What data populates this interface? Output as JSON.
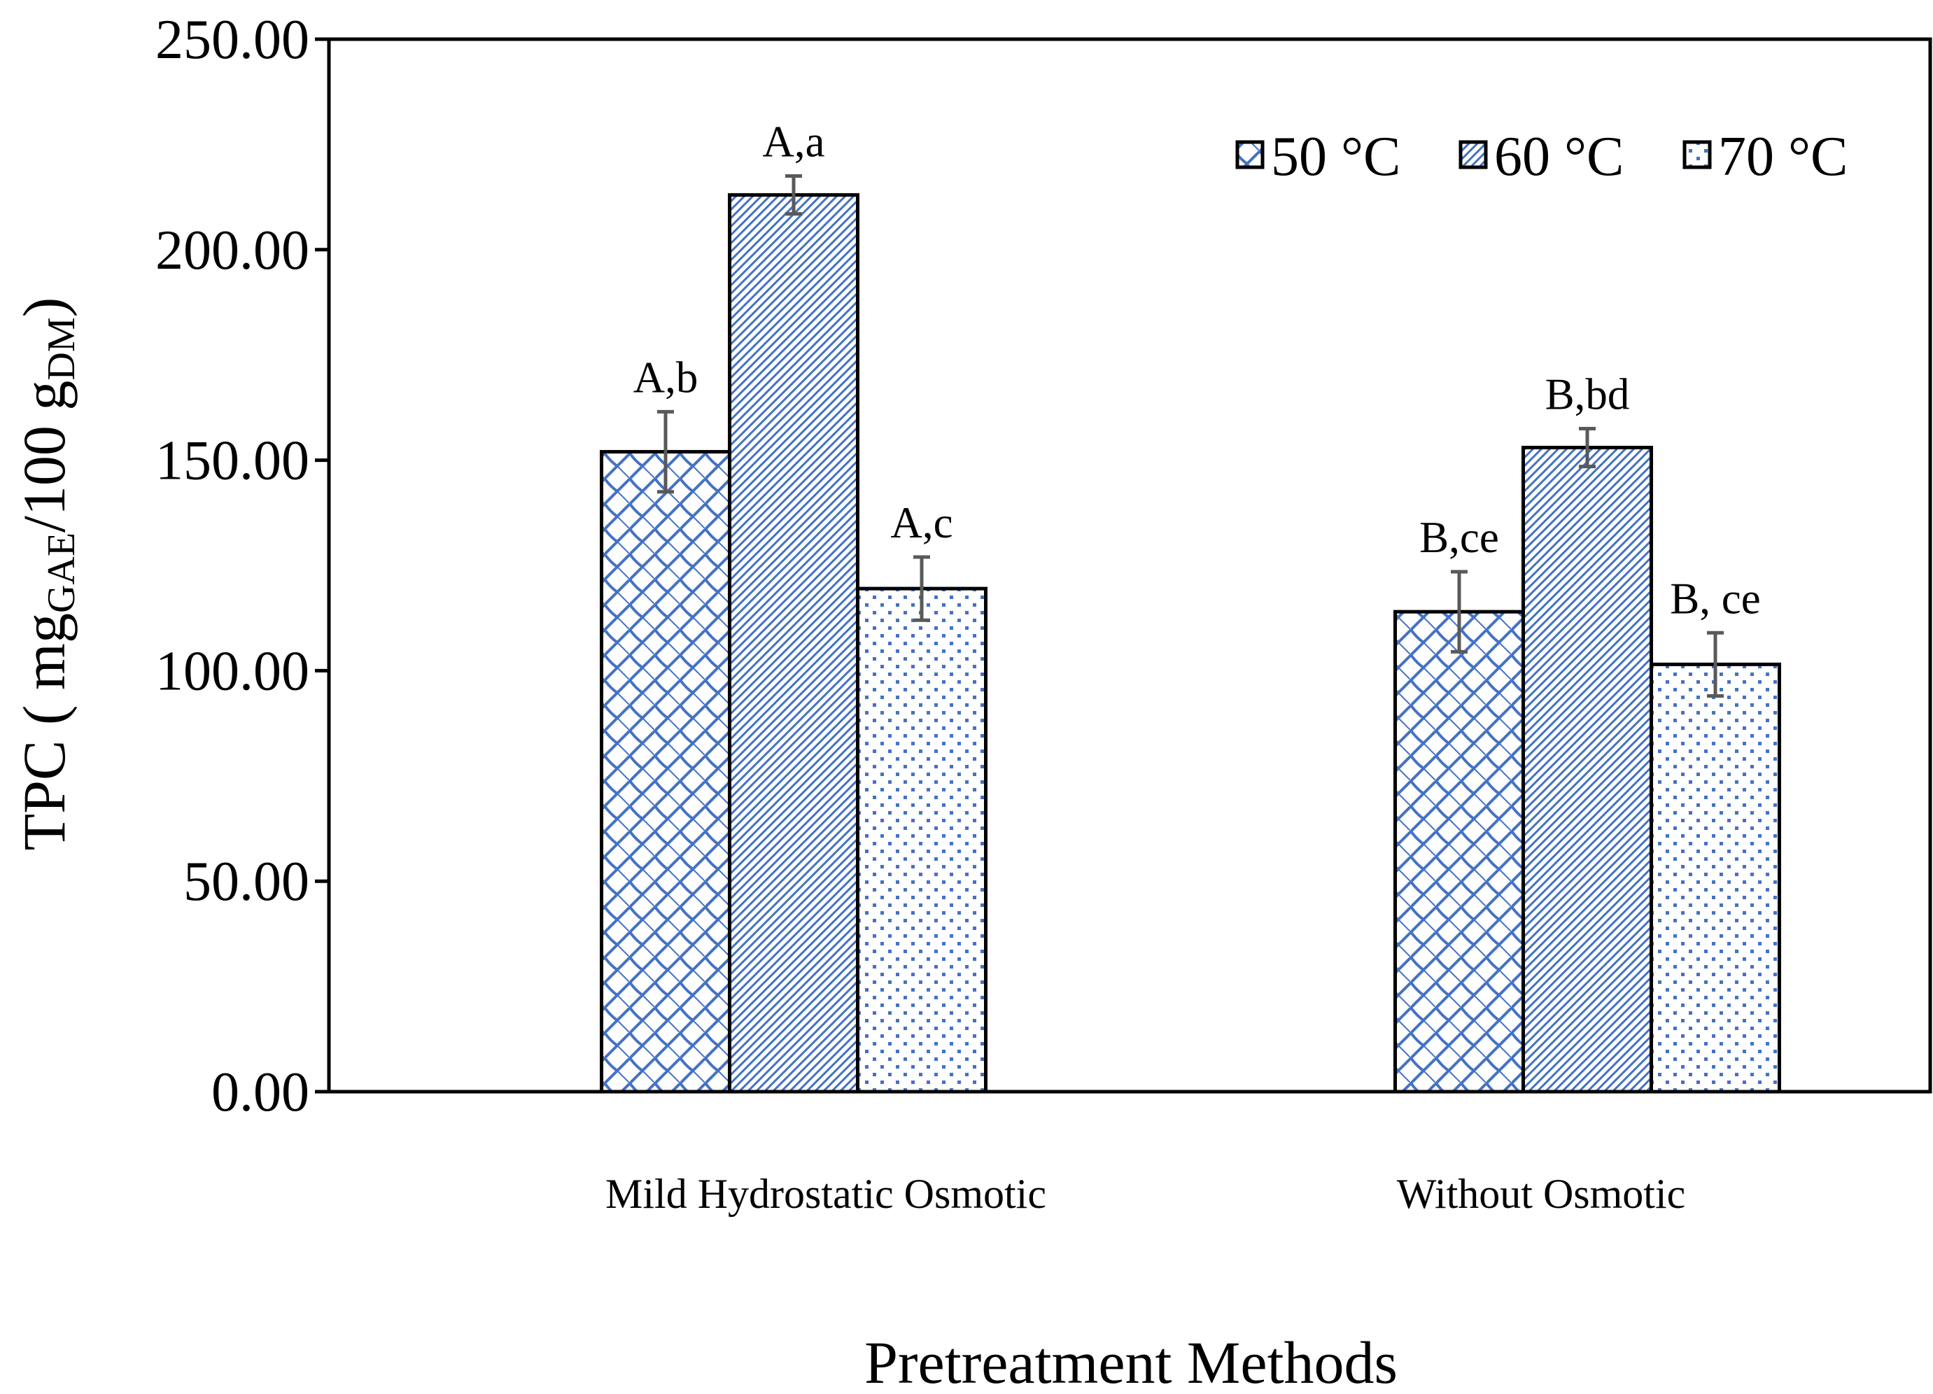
{
  "chart_data": {
    "type": "bar",
    "title": "",
    "xlabel": "Pretreatment Methods",
    "ylabel": {
      "prefix": "TPC ( mg",
      "sub1": "GAE",
      "middle": "/100 g",
      "sub2": "DM",
      "suffix": ")"
    },
    "ylim": [
      0,
      250
    ],
    "yticks": [
      "0.00",
      "50.00",
      "100.00",
      "150.00",
      "200.00",
      "250.00"
    ],
    "categories": [
      "Mild Hydrostatic Osmotic",
      "Without Osmotic"
    ],
    "series": [
      {
        "name": "50 °C",
        "values": [
          152,
          114
        ],
        "errors": [
          9.5,
          9.5
        ],
        "labels": [
          "A,b",
          "B,ce"
        ],
        "color": "#4472C4",
        "pattern": "scale"
      },
      {
        "name": "60 °C",
        "values": [
          213,
          153
        ],
        "errors": [
          4.5,
          4.5
        ],
        "labels": [
          "A,a",
          "B,bd"
        ],
        "color": "#4472C4",
        "pattern": "diagonal"
      },
      {
        "name": "70 °C",
        "values": [
          119.5,
          101.5
        ],
        "errors": [
          7.5,
          7.5
        ],
        "labels": [
          "A,c",
          "B, ce"
        ],
        "color": "#4472C4",
        "pattern": "dots"
      }
    ],
    "legend_position": "top-right",
    "grid": false
  }
}
